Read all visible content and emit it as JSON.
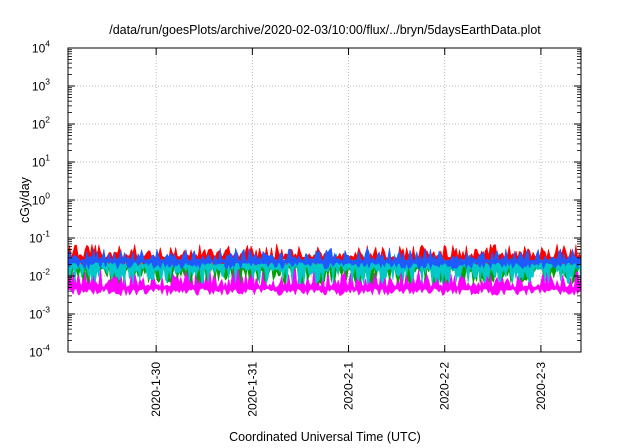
{
  "chart_data": {
    "type": "area",
    "title": "/data/run/goesPlots/archive/2020-02-03/10:00/flux/../bryn/5daysEarthData.plot",
    "xlabel": "Coordinated Universal Time (UTC)",
    "ylabel": "cGy/day",
    "yscale": "log",
    "ylim": [
      0.0001,
      10000
    ],
    "y_ticks": [
      {
        "base": "10",
        "exp": "4"
      },
      {
        "base": "10",
        "exp": "3"
      },
      {
        "base": "10",
        "exp": "2"
      },
      {
        "base": "10",
        "exp": "1"
      },
      {
        "base": "10",
        "exp": "0"
      },
      {
        "base": "10",
        "exp": "-1"
      },
      {
        "base": "10",
        "exp": "-2"
      },
      {
        "base": "10",
        "exp": "-3"
      },
      {
        "base": "10",
        "exp": "-4"
      }
    ],
    "xlim": [
      "2020-01-29T02:00",
      "2020-02-03T10:00"
    ],
    "x_ticks": [
      {
        "label": "2020-1-30",
        "date": "2020-01-30"
      },
      {
        "label": "2020-1-31",
        "date": "2020-01-31"
      },
      {
        "label": "2020-2-1",
        "date": "2020-02-01"
      },
      {
        "label": "2020-2-2",
        "date": "2020-02-02"
      },
      {
        "label": "2020-2-3",
        "date": "2020-02-03"
      }
    ],
    "grid": true,
    "series": [
      {
        "color": "#ff0000",
        "typical": 0.03,
        "min": 0.02,
        "max": 0.07
      },
      {
        "color": "#1e5aff",
        "typical": 0.025,
        "min": 0.015,
        "max": 0.055
      },
      {
        "color": "#00c8c8",
        "typical": 0.022,
        "min": 0.006,
        "max": 0.04
      },
      {
        "color": "#00a000",
        "typical": 0.02,
        "min": 0.006,
        "max": 0.035
      },
      {
        "color": "#ff00ff",
        "typical": 0.005,
        "min": 0.003,
        "max": 0.02
      }
    ]
  }
}
